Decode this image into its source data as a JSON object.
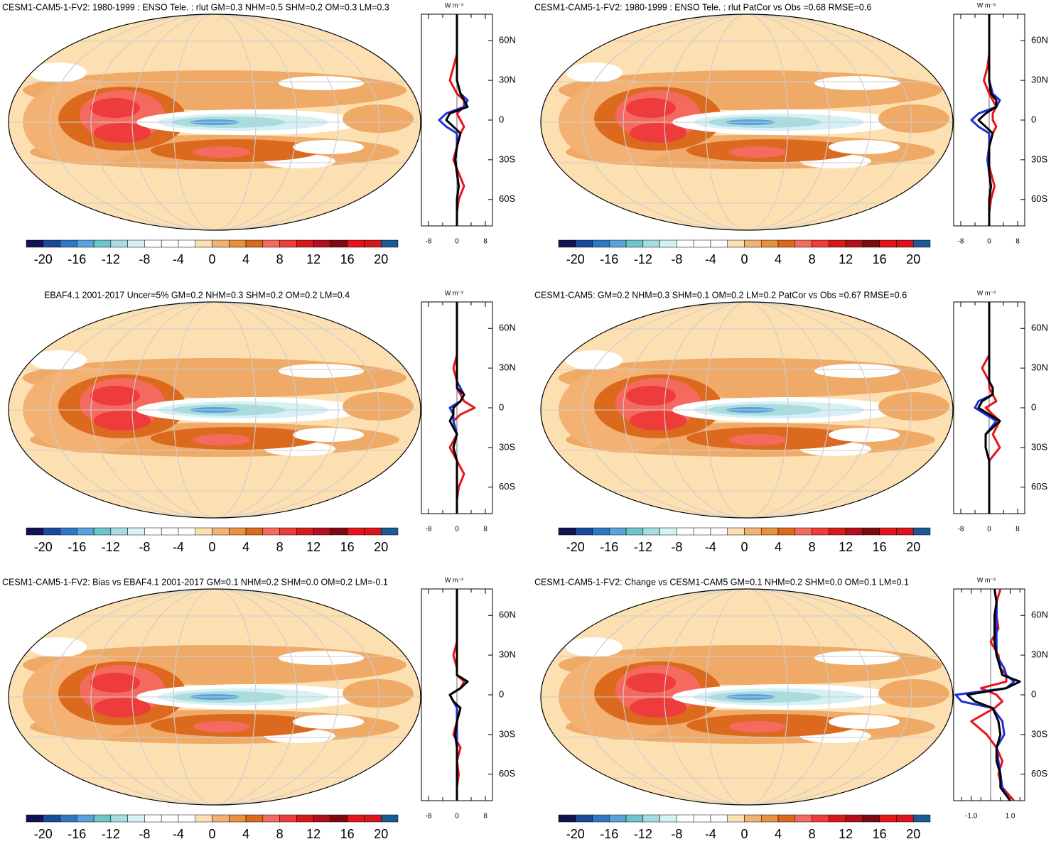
{
  "chart_data": [
    {
      "type": "zonal-map",
      "title": "CESM1-CAM5-1-FV2: 1980-1999 : ENSO Tele. : rlut GM=0.3 NHM=0.5 SHM=0.2 OM=0.3 LM=0.3",
      "unit": "W m⁻²",
      "lat": [
        -80,
        -70,
        -60,
        -50,
        -40,
        -30,
        -20,
        -10,
        -5,
        0,
        5,
        10,
        15,
        20,
        30,
        40,
        50,
        60,
        70,
        80
      ],
      "series": [
        {
          "color": "#e8141b",
          "values": [
            0,
            0,
            0.5,
            2,
            0.5,
            -1,
            0,
            1,
            2,
            1,
            0,
            2,
            2,
            0,
            -2,
            -1,
            0,
            0,
            0,
            0
          ]
        },
        {
          "color": "#1f2fd6",
          "values": [
            0,
            0,
            0,
            0.5,
            0,
            -0.5,
            0,
            0,
            -3,
            -5,
            -3,
            2,
            3,
            1,
            0,
            0,
            0,
            0,
            0,
            0
          ]
        },
        {
          "color": "#000000",
          "values": [
            0,
            0,
            0,
            0.5,
            0,
            -0.5,
            0,
            1,
            -1,
            -3,
            -2,
            3,
            2,
            1,
            0,
            0,
            0,
            0,
            0,
            0
          ]
        }
      ],
      "xlim": [
        -10,
        10
      ],
      "xticks": [
        -8,
        0,
        8
      ],
      "minor_xticks": [
        -4,
        4
      ],
      "ylim": [
        -80,
        80
      ],
      "yticks": [
        {
          "value": -60,
          "label": "60S"
        },
        {
          "value": -30,
          "label": "30S"
        },
        0,
        {
          "value": 30,
          "label": "30N"
        },
        {
          "value": 60,
          "label": "60N"
        }
      ]
    },
    {
      "type": "zonal-map",
      "title": "CESM1-CAM5-1-FV2: 1980-1999 : ENSO Tele. : rlut PatCor vs Obs =0.68 RMSE=0.6",
      "unit": "W m⁻²",
      "lat": [
        -80,
        -70,
        -60,
        -50,
        -40,
        -30,
        -20,
        -10,
        -5,
        0,
        5,
        10,
        15,
        20,
        30,
        40,
        50,
        60,
        70,
        80
      ],
      "series": [
        {
          "color": "#e8141b",
          "values": [
            0,
            0,
            0.5,
            1.5,
            0.5,
            -0.5,
            0,
            1,
            2,
            1,
            1,
            2,
            1,
            0,
            -1.5,
            -0.5,
            0,
            0,
            0,
            0
          ]
        },
        {
          "color": "#1f2fd6",
          "values": [
            0,
            0,
            0,
            0.5,
            0,
            -0.5,
            0,
            0,
            -3,
            -5,
            -3,
            2,
            3,
            1,
            0,
            0,
            0,
            0,
            0,
            0
          ]
        },
        {
          "color": "#000000",
          "values": [
            0,
            0,
            0,
            0.5,
            0,
            0,
            0,
            1,
            -1,
            -3,
            -1,
            2,
            2,
            0.5,
            0,
            0,
            0,
            0,
            0,
            0
          ]
        }
      ],
      "xlim": [
        -10,
        10
      ],
      "xticks": [
        -8,
        0,
        8
      ],
      "minor_xticks": [
        -4,
        4
      ],
      "ylim": [
        -80,
        80
      ],
      "yticks": [
        {
          "value": -60,
          "label": "60S"
        },
        {
          "value": -30,
          "label": "30S"
        },
        0,
        {
          "value": 30,
          "label": "30N"
        },
        {
          "value": 60,
          "label": "60N"
        }
      ]
    },
    {
      "type": "zonal-map",
      "title": "EBAF4.1 2001-2017 Uncer=5% GM=0.2 NHM=0.3 SHM=0.2 OM=0.2 LM=0.4",
      "unit": "W m⁻²",
      "lat": [
        -80,
        -70,
        -60,
        -50,
        -40,
        -30,
        -20,
        -10,
        -5,
        0,
        5,
        10,
        15,
        20,
        30,
        40,
        50,
        60,
        70,
        80
      ],
      "series": [
        {
          "color": "#e8141b",
          "values": [
            0,
            0,
            0.5,
            2,
            0,
            -2,
            0,
            -1,
            1,
            5,
            2,
            1,
            0,
            0,
            -1,
            0,
            0,
            0,
            0,
            0
          ]
        },
        {
          "color": "#1f2fd6",
          "values": [
            0,
            0,
            0,
            0,
            0,
            -1,
            0,
            -1,
            -1,
            -2,
            1,
            2,
            1,
            0,
            0,
            0,
            0,
            0,
            0,
            0
          ]
        },
        {
          "color": "#000000",
          "values": [
            0,
            0,
            0,
            0,
            0,
            -1,
            0,
            -2,
            -1,
            -1,
            1,
            2,
            0,
            0,
            0,
            0,
            0,
            0,
            0,
            0
          ]
        }
      ],
      "xlim": [
        -10,
        10
      ],
      "xticks": [
        -8,
        0,
        8
      ],
      "minor_xticks": [
        -4,
        4
      ],
      "ylim": [
        -80,
        80
      ],
      "yticks": [
        {
          "value": -60,
          "label": "60S"
        },
        {
          "value": -30,
          "label": "30S"
        },
        0,
        {
          "value": 30,
          "label": "30N"
        },
        {
          "value": 60,
          "label": "60N"
        }
      ]
    },
    {
      "type": "zonal-map",
      "title": "CESM1-CAM5: GM=0.2 NHM=0.3 SHM=0.1 OM=0.2 LM=0.2 PatCor vs Obs =0.67 RMSE=0.6",
      "unit": "W m⁻²",
      "lat": [
        -80,
        -70,
        -60,
        -50,
        -40,
        -30,
        -20,
        -10,
        -5,
        0,
        5,
        10,
        15,
        20,
        30,
        40,
        50,
        60,
        70,
        80
      ],
      "series": [
        {
          "color": "#e8141b",
          "values": [
            0,
            0,
            0,
            0,
            0,
            3,
            1,
            3,
            1,
            -1,
            2,
            1,
            0,
            0,
            -2,
            0,
            0,
            0,
            0,
            0
          ]
        },
        {
          "color": "#1f2fd6",
          "values": [
            0,
            0,
            0,
            0,
            0,
            -1,
            -1,
            2,
            -1,
            -4,
            -3,
            1,
            1,
            0,
            0,
            0,
            0,
            0,
            0,
            0
          ]
        },
        {
          "color": "#000000",
          "values": [
            0,
            0,
            0,
            0,
            0,
            -1,
            -1,
            3,
            0,
            -3,
            -2,
            1,
            1,
            0,
            0,
            0,
            0,
            0,
            0,
            0
          ]
        }
      ],
      "xlim": [
        -10,
        10
      ],
      "xticks": [
        -8,
        0,
        8
      ],
      "minor_xticks": [
        -4,
        4
      ],
      "ylim": [
        -80,
        80
      ],
      "yticks": [
        {
          "value": -60,
          "label": "60S"
        },
        {
          "value": -30,
          "label": "30S"
        },
        0,
        {
          "value": 30,
          "label": "30N"
        },
        {
          "value": 60,
          "label": "60N"
        }
      ]
    },
    {
      "type": "zonal-map",
      "title": "CESM1-CAM5-1-FV2: Bias vs EBAF4.1 2001-2017 GM=0.1 NHM=0.2 SHM=0.0 OM=0.2 LM=-0.1",
      "unit": "W m⁻²",
      "lat": [
        -80,
        -70,
        -60,
        -50,
        -40,
        -30,
        -20,
        -10,
        -5,
        0,
        5,
        10,
        15,
        20,
        30,
        40,
        50,
        60,
        70,
        80
      ],
      "series": [
        {
          "color": "#e8141b",
          "values": [
            0,
            0,
            0.5,
            0,
            1,
            -1,
            0,
            1,
            -1,
            -2,
            1,
            2,
            0,
            0,
            -1,
            0,
            0,
            0,
            0,
            0
          ]
        },
        {
          "color": "#1f2fd6",
          "values": [
            0,
            0,
            0,
            0,
            0,
            0,
            0,
            0,
            -1,
            -2,
            1,
            3,
            0,
            0,
            0,
            0,
            0,
            0,
            0,
            0
          ]
        },
        {
          "color": "#000000",
          "values": [
            0,
            0,
            0,
            0,
            0,
            -0.5,
            0,
            1,
            -1,
            -2,
            1,
            3,
            0,
            0,
            0,
            0,
            0,
            0,
            0,
            0
          ]
        }
      ],
      "xlim": [
        -10,
        10
      ],
      "xticks": [
        -8,
        0,
        8
      ],
      "minor_xticks": [
        -4,
        4
      ],
      "ylim": [
        -80,
        80
      ],
      "yticks": [
        {
          "value": -60,
          "label": "60S"
        },
        {
          "value": -30,
          "label": "30S"
        },
        0,
        {
          "value": 30,
          "label": "30N"
        },
        {
          "value": 60,
          "label": "60N"
        }
      ]
    },
    {
      "type": "zonal-map",
      "title": "CESM1-CAM5-1-FV2: Change vs CESM1-CAM5 GM=0.1 NHM=0.2 SHM=0.0 OM=0.1 LM=0.1",
      "unit": "W m⁻²",
      "lat": [
        -80,
        -70,
        -60,
        -50,
        -40,
        -30,
        -20,
        -10,
        -5,
        0,
        5,
        10,
        15,
        20,
        30,
        40,
        50,
        60,
        70,
        80
      ],
      "series": [
        {
          "color": "#e8141b",
          "values": [
            1.2,
            0.6,
            0.4,
            0.6,
            0.3,
            -0.2,
            -1.0,
            0.2,
            0.6,
            0.3,
            -0.5,
            0.8,
            0.8,
            0.5,
            0.4,
            0.0,
            0.4,
            0.3,
            0.3,
            0.5
          ]
        },
        {
          "color": "#1f2fd6",
          "values": [
            1.0,
            0.6,
            0.5,
            0.4,
            0.3,
            0.7,
            0.6,
            0.1,
            -1.5,
            -1.8,
            0.8,
            1.2,
            0.8,
            0.7,
            0.3,
            0.3,
            0.3,
            0.3,
            0.3,
            0.2
          ]
        },
        {
          "color": "#000000",
          "values": [
            1.0,
            0.5,
            0.5,
            0.3,
            0.3,
            0.5,
            0.4,
            0.1,
            -0.8,
            -1.2,
            0.8,
            1.5,
            0.6,
            0.5,
            0.3,
            0.2,
            0.2,
            0.2,
            0.3,
            0.2
          ]
        }
      ],
      "xlim": [
        -1.9,
        1.75
      ],
      "xticks": [
        {
          "value": -1,
          "label": "-1.0"
        },
        {
          "value": 1,
          "label": "1.0"
        }
      ],
      "minor_xticks": [
        -1.5,
        -0.5,
        0,
        0.5,
        1.5
      ],
      "ylim": [
        -80,
        80
      ],
      "yticks": [
        {
          "value": -60,
          "label": "60S"
        },
        {
          "value": -30,
          "label": "30S"
        },
        0,
        {
          "value": 30,
          "label": "30N"
        },
        {
          "value": 60,
          "label": "60N"
        }
      ]
    }
  ],
  "colorbar": {
    "lim": [
      -22,
      22
    ],
    "ticks": [
      -20,
      -16,
      -12,
      -8,
      -4,
      0,
      4,
      8,
      12,
      16,
      20
    ],
    "colors": [
      "#131352",
      "#1b4a9a",
      "#2f78c4",
      "#5aa2dc",
      "#6cc5c8",
      "#a8dde0",
      "#d6f1f4",
      "#ffffff",
      "#ffffff",
      "#ffffff",
      "#fde0b2",
      "#f3b273",
      "#e8913f",
      "#dc6a1e",
      "#f56a5f",
      "#ee3b3b",
      "#d7191c",
      "#b0101a",
      "#7d0a10",
      "#e3141b",
      "#d8141c",
      "#1b5a94"
    ]
  }
}
